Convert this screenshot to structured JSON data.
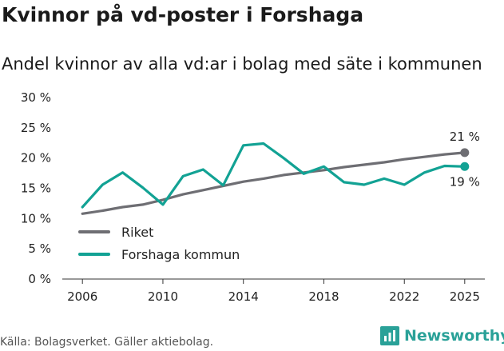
{
  "title": "Kvinnor på vd-poster i Forshaga",
  "subtitle": "Andel kvinnor av alla vd:ar i bolag med säte i kommunen",
  "source": "Källa: Bolagsverket. Gäller aktiebolag.",
  "brand": "Newsworthy",
  "colors": {
    "riket": "#6e6e73",
    "forshaga": "#12a294",
    "grid": "#dddddd",
    "axis": "#333333"
  },
  "chart_data": {
    "type": "line",
    "title": "Kvinnor på vd-poster i Forshaga",
    "xlabel": "",
    "ylabel": "",
    "xlim": [
      2005,
      2026
    ],
    "ylim": [
      0,
      30
    ],
    "x_ticks": [
      2006,
      2010,
      2014,
      2018,
      2022,
      2025
    ],
    "x_tick_labels": [
      "2006",
      "2010",
      "2014",
      "2018",
      "2022",
      "2025"
    ],
    "y_ticks": [
      0,
      5,
      10,
      15,
      20,
      25,
      30
    ],
    "y_tick_labels": [
      "0 %",
      "5 %",
      "10 %",
      "15 %",
      "20 %",
      "25 %",
      "30 %"
    ],
    "x": [
      2006,
      2007,
      2008,
      2009,
      2010,
      2011,
      2012,
      2013,
      2014,
      2015,
      2016,
      2017,
      2018,
      2019,
      2020,
      2021,
      2022,
      2023,
      2024,
      2025
    ],
    "series": [
      {
        "name": "Riket",
        "color": "#6e6e73",
        "values": [
          10.8,
          11.3,
          11.9,
          12.3,
          13.1,
          14.0,
          14.7,
          15.4,
          16.1,
          16.6,
          17.2,
          17.6,
          18.0,
          18.5,
          18.9,
          19.3,
          19.8,
          20.2,
          20.6,
          20.9
        ],
        "end_label": "21 %"
      },
      {
        "name": "Forshaga kommun",
        "color": "#12a294",
        "values": [
          11.9,
          15.6,
          17.6,
          15.1,
          12.3,
          17.0,
          18.1,
          15.5,
          22.1,
          22.4,
          20.0,
          17.4,
          18.6,
          16.0,
          15.6,
          16.6,
          15.6,
          17.6,
          18.7,
          18.6
        ],
        "end_label": "19 %"
      }
    ],
    "legend": {
      "placement": "bottom-left",
      "entries": [
        "Riket",
        "Forshaga kommun"
      ]
    },
    "grid": false
  }
}
